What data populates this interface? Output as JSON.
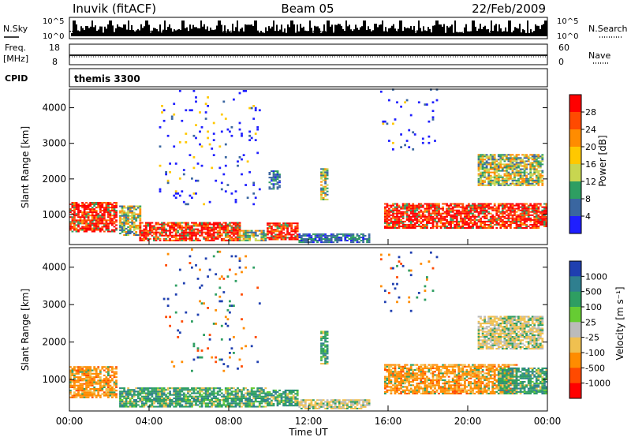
{
  "header": {
    "station": "Inuvik (fitACF)",
    "beam": "Beam 05",
    "date": "22/Feb/2009"
  },
  "strips": {
    "noise": {
      "left_label": "N.Sky",
      "right_label": "N.Search",
      "left_ticks": [
        "10^5",
        "10^0"
      ],
      "right_ticks": [
        "10^5",
        "10^0"
      ]
    },
    "freq": {
      "left_label": "Freq.",
      "left_unit": "[MHz]",
      "right_label": "Nave",
      "left_ticks": [
        "18",
        "8"
      ],
      "right_ticks": [
        "60",
        "0"
      ]
    },
    "cpid": {
      "label": "CPID",
      "value": "themis 3300"
    }
  },
  "chart_data": [
    {
      "type": "heatmap",
      "name": "power",
      "ylabel": "Slant Range [km]",
      "ylim": [
        180,
        4500
      ],
      "yticks": [
        "4000",
        "3000",
        "2000",
        "1000"
      ],
      "colorbar": {
        "label": "Power [dB]",
        "ticks": [
          "28",
          "24",
          "20",
          "16",
          "12",
          "8",
          "4"
        ],
        "colors": [
          "#ff0000",
          "#ff4a00",
          "#ff8c00",
          "#ffc800",
          "#c8d650",
          "#2e9e62",
          "#3a66a0",
          "#1f1fff"
        ]
      },
      "regions": [
        {
          "t": [
            0.0,
            2.4
          ],
          "r": [
            500,
            1350
          ],
          "level": "high"
        },
        {
          "t": [
            2.5,
            3.6
          ],
          "r": [
            400,
            1250
          ],
          "level": "mid"
        },
        {
          "t": [
            3.5,
            8.5
          ],
          "r": [
            250,
            750
          ],
          "level": "high"
        },
        {
          "t": [
            8.5,
            9.8
          ],
          "r": [
            250,
            550
          ],
          "level": "mid"
        },
        {
          "t": [
            9.9,
            11.4
          ],
          "r": [
            280,
            750
          ],
          "level": "high"
        },
        {
          "t": [
            11.5,
            15.0
          ],
          "r": [
            200,
            450
          ],
          "level": "low"
        },
        {
          "t": [
            10.0,
            10.5
          ],
          "r": [
            1700,
            2200
          ],
          "level": "low"
        },
        {
          "t": [
            12.6,
            12.9
          ],
          "r": [
            1400,
            2300
          ],
          "level": "mid"
        },
        {
          "t": [
            15.8,
            24.0
          ],
          "r": [
            600,
            1300
          ],
          "level": "high"
        },
        {
          "t": [
            20.5,
            23.8
          ],
          "r": [
            1800,
            2700
          ],
          "level": "mid"
        },
        {
          "t": [
            4.5,
            9.5
          ],
          "r": [
            1200,
            4500
          ],
          "level": "sparse"
        },
        {
          "t": [
            15.6,
            18.5
          ],
          "r": [
            2800,
            4500
          ],
          "level": "sparse"
        }
      ]
    },
    {
      "type": "heatmap",
      "name": "velocity",
      "ylabel": "Slant Range [km]",
      "xlabel": "Time UT",
      "ylim": [
        180,
        4500
      ],
      "yticks": [
        "4000",
        "3000",
        "2000",
        "1000"
      ],
      "xticks": [
        "00:00",
        "04:00",
        "08:00",
        "12:00",
        "16:00",
        "20:00",
        "00:00"
      ],
      "xlim_hours": [
        0,
        24
      ],
      "colorbar": {
        "label": "Velocity [m s⁻¹]",
        "ticks": [
          "1000",
          "500",
          "100",
          "25",
          "-25",
          "-100",
          "-500",
          "-1000"
        ],
        "colors": [
          "#1f3fb0",
          "#2f7f8f",
          "#2e9e62",
          "#66cc33",
          "#bbbbbb",
          "#f0c050",
          "#ff8c00",
          "#ff4a00",
          "#ff0000"
        ]
      },
      "regions": [
        {
          "t": [
            0.0,
            2.4
          ],
          "r": [
            500,
            1350
          ],
          "level": "orange"
        },
        {
          "t": [
            2.5,
            9.8
          ],
          "r": [
            250,
            750
          ],
          "level": "green"
        },
        {
          "t": [
            9.9,
            11.4
          ],
          "r": [
            280,
            700
          ],
          "level": "green"
        },
        {
          "t": [
            11.5,
            15.0
          ],
          "r": [
            200,
            450
          ],
          "level": "yellow"
        },
        {
          "t": [
            12.6,
            12.9
          ],
          "r": [
            1400,
            2300
          ],
          "level": "green"
        },
        {
          "t": [
            15.8,
            22.5
          ],
          "r": [
            600,
            1400
          ],
          "level": "orange"
        },
        {
          "t": [
            21.5,
            24.0
          ],
          "r": [
            600,
            1300
          ],
          "level": "green"
        },
        {
          "t": [
            20.5,
            23.8
          ],
          "r": [
            1800,
            2700
          ],
          "level": "yellow"
        },
        {
          "t": [
            4.5,
            9.5
          ],
          "r": [
            1200,
            4500
          ],
          "level": "sparse"
        },
        {
          "t": [
            15.6,
            18.5
          ],
          "r": [
            2800,
            4500
          ],
          "level": "sparse"
        }
      ]
    }
  ]
}
